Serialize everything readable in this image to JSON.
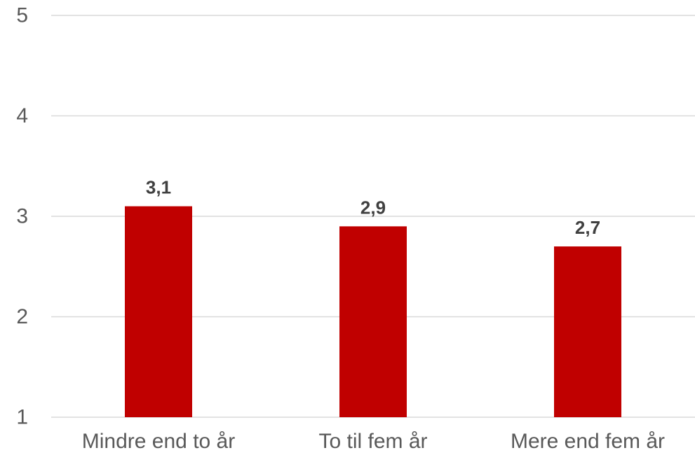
{
  "chart_data": {
    "type": "bar",
    "categories": [
      "Mindre end to år",
      "To til fem år",
      "Mere end fem år"
    ],
    "values": [
      3.1,
      2.9,
      2.7
    ],
    "data_labels": [
      "3,1",
      "2,9",
      "2,7"
    ],
    "title": "",
    "xlabel": "",
    "ylabel": "",
    "ylim": [
      1,
      5
    ],
    "yticks": [
      "1",
      "2",
      "3",
      "4",
      "5"
    ],
    "grid": true,
    "legend": "none",
    "bar_color": "#c00000"
  }
}
